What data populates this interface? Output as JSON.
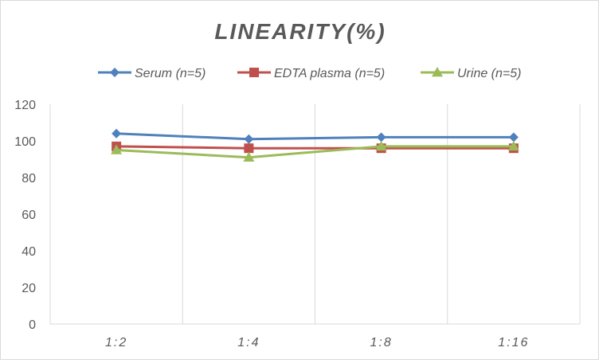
{
  "chart_data": {
    "type": "line",
    "title": "LINEARITY(%)",
    "xlabel": "",
    "ylabel": "",
    "categories": [
      "1:2",
      "1:4",
      "1:8",
      "1:16"
    ],
    "ylim": [
      0,
      120
    ],
    "yticks": [
      0,
      20,
      40,
      60,
      80,
      100,
      120
    ],
    "grid": "vertical",
    "legend": "top",
    "series": [
      {
        "name": "Serum (n=5)",
        "values": [
          104,
          101,
          102,
          102
        ],
        "color": "#4f81bd",
        "marker": "diamond"
      },
      {
        "name": "EDTA plasma (n=5)",
        "values": [
          97,
          96,
          96,
          96
        ],
        "color": "#c0504d",
        "marker": "square"
      },
      {
        "name": "Urine (n=5)",
        "values": [
          95,
          91,
          97,
          97
        ],
        "color": "#9bbb59",
        "marker": "triangle"
      }
    ]
  }
}
